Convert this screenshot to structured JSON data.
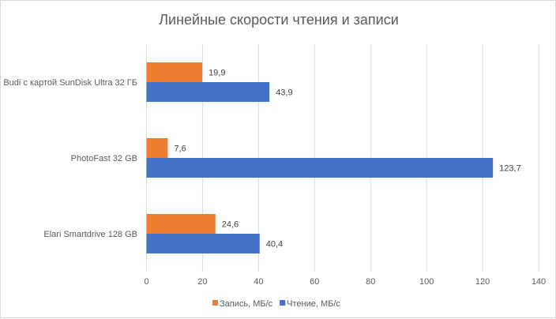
{
  "chart_data": {
    "type": "bar",
    "orientation": "horizontal",
    "title": "Линейные скорости чтения и записи",
    "categories": [
      "Budi с картой SunDisk Ultra 32 ГБ",
      "PhotoFast 32 GB",
      "Elari Smartdrive 128 GB"
    ],
    "series": [
      {
        "name": "Запись, МБ/с",
        "color": "#ED7D31",
        "values": [
          19.9,
          7.6,
          24.6
        ],
        "labels": [
          "19,9",
          "7,6",
          "24,6"
        ]
      },
      {
        "name": "Чтение, МБ/с",
        "color": "#4472C4",
        "values": [
          43.9,
          123.7,
          40.4
        ],
        "labels": [
          "43,9",
          "123,7",
          "40,4"
        ]
      }
    ],
    "xlim": [
      0,
      140
    ],
    "xticks": [
      0,
      20,
      40,
      60,
      80,
      100,
      120,
      140
    ],
    "grid": true,
    "legend": "bottom",
    "xlabel": "",
    "ylabel": ""
  }
}
